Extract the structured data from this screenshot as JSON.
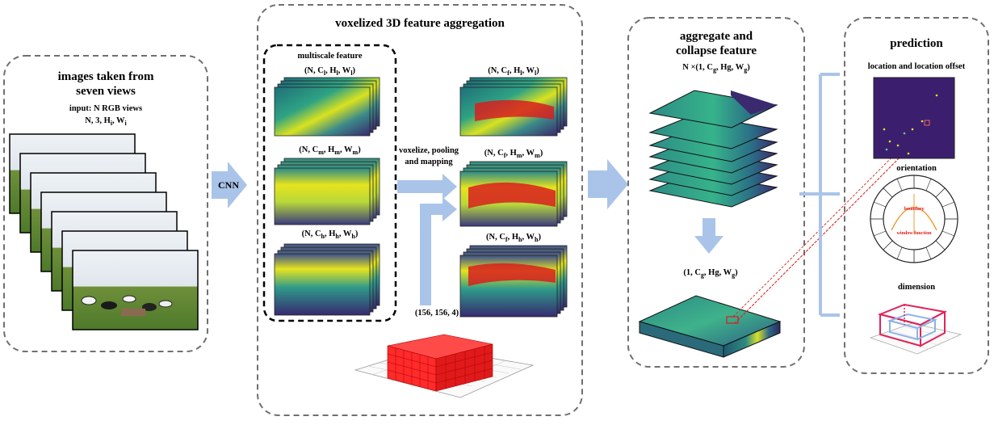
{
  "panels": {
    "images": {
      "title_line1": "images taken from",
      "title_line2": "seven views",
      "input_line1": "input: N RGB views",
      "input_line2": "N, 3, H",
      "input_line2_sub": "i",
      "input_line2_tail": ", W",
      "input_line2_sub2": "i"
    },
    "voxel": {
      "title": "voxelized 3D feature aggregation",
      "multiscale_title": "multiscale feature",
      "shape_l": "(N, C",
      "shape_l_sub": "l",
      "shape_l_mid": ", H",
      "shape_l_sub2": "l",
      "shape_l_mid2": ", W",
      "shape_l_sub3": "l",
      "shape_l_end": ")",
      "shape_m": "(N, C",
      "shape_m_sub": "m",
      "shape_m_mid": ", H",
      "shape_m_sub2": "m",
      "shape_m_mid2": ", W",
      "shape_m_sub3": "m",
      "shape_m_end": ")",
      "shape_h": "(N, C",
      "shape_h_sub": "h",
      "shape_h_mid": ", H",
      "shape_h_sub2": "h",
      "shape_h_mid2": ", W",
      "shape_h_sub3": "h",
      "shape_h_end": ")",
      "op_line1": "voxelize, pooling",
      "op_line2": "and mapping",
      "fshape_l_pre": "(N, C",
      "fshape_l_sub": "f",
      "fshape_l_mid": ", H",
      "fshape_l_sub2": "l",
      "fshape_l_mid2": ", W",
      "fshape_l_sub3": "l",
      "fshape_l_end": ")",
      "fshape_m_pre": "(N, C",
      "fshape_m_sub": "f",
      "fshape_m_mid": ", H",
      "fshape_m_sub2": "m",
      "fshape_m_mid2": ", W",
      "fshape_m_sub3": "m",
      "fshape_m_end": ")",
      "fshape_h_pre": "(N, C",
      "fshape_h_sub": "f",
      "fshape_h_mid": ", H",
      "fshape_h_sub2": "h",
      "fshape_h_mid2": ", W",
      "fshape_h_sub3": "h",
      "fshape_h_end": ")",
      "grid_shape": "(156, 156, 4)"
    },
    "cnn": {
      "label": "CNN"
    },
    "aggregate": {
      "title_line1": "aggregate and",
      "title_line2": "collapse feature",
      "shape_pre": "N ×(1, C",
      "shape_sub": "g",
      "shape_mid": ", Hg, W",
      "shape_sub2": "g",
      "shape_end": ")",
      "out_pre": "(1, C",
      "out_sub": "g",
      "out_mid": ", Hg, W",
      "out_sub2": "g",
      "out_end": ")"
    },
    "prediction": {
      "title": "prediction",
      "loc_title": "location and location offset",
      "orientation_title": "orientation",
      "boundary_label": "boundary",
      "window_label": "window function",
      "dimension_title": "dimension"
    }
  },
  "colors": {
    "dash_border": "#707070",
    "arrow_blue": "#a9c4e8",
    "feature_yellow": "#e6e41e",
    "feature_teal": "#2a8a8a",
    "feature_dark": "#3b2a6e",
    "heat_red": "#d81f1f",
    "voxel_red": "#ff2a2a",
    "orient_red": "#e02020",
    "orient_orange": "#f09020",
    "box_red": "#e0245a",
    "box_blue": "#8db4e8"
  }
}
